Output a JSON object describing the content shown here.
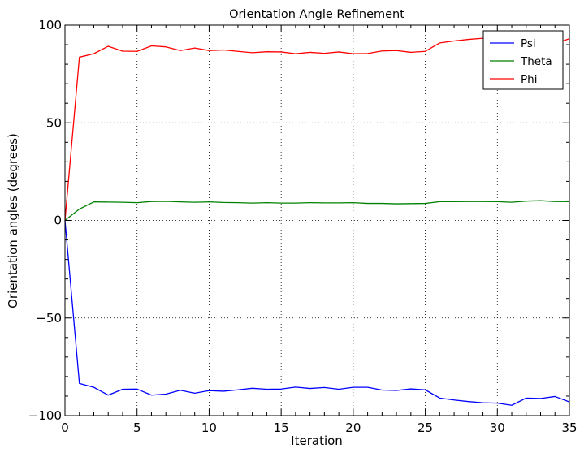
{
  "chart_data": {
    "type": "line",
    "title": "Orientation Angle Refinement",
    "xlabel": "Iteration",
    "ylabel": "Orientation angles (degrees)",
    "xlim": [
      0,
      35
    ],
    "ylim": [
      -100,
      100
    ],
    "xticks": [
      0,
      5,
      10,
      15,
      20,
      25,
      30,
      35
    ],
    "yticks": [
      -100,
      -50,
      0,
      50,
      100
    ],
    "xtick_labels": [
      "0",
      "5",
      "10",
      "15",
      "20",
      "25",
      "30",
      "35"
    ],
    "ytick_labels": [
      "−100",
      "−50",
      "0",
      "50",
      "100"
    ],
    "grid": true,
    "legend_position": "top-right",
    "x": [
      0,
      1,
      2,
      3,
      4,
      5,
      6,
      7,
      8,
      9,
      10,
      11,
      12,
      13,
      14,
      15,
      16,
      17,
      18,
      19,
      20,
      21,
      22,
      23,
      24,
      25,
      26,
      27,
      28,
      29,
      30,
      31,
      32,
      33,
      34,
      35
    ],
    "series": [
      {
        "name": "Psi",
        "color": "#0000ff",
        "values": [
          0,
          -83.5,
          -85.5,
          -89.5,
          -86.5,
          -86.4,
          -89.5,
          -89,
          -87,
          -88.5,
          -87.2,
          -87.5,
          -86.8,
          -86,
          -86.5,
          -86.4,
          -85.4,
          -86.1,
          -85.6,
          -86.5,
          -85.5,
          -85.5,
          -86.9,
          -87.1,
          -86.3,
          -86.8,
          -91,
          -92,
          -92.8,
          -93.4,
          -93.6,
          -94.7,
          -91,
          -91.2,
          -90.2,
          -93
        ]
      },
      {
        "name": "Theta",
        "color": "#008000",
        "values": [
          0,
          5.8,
          9.5,
          9.4,
          9.3,
          9.1,
          9.7,
          9.8,
          9.5,
          9.3,
          9.5,
          9.2,
          9.1,
          8.9,
          9.1,
          8.9,
          8.9,
          9.1,
          9.0,
          9.0,
          9.1,
          8.7,
          8.7,
          8.5,
          8.6,
          8.7,
          9.6,
          9.6,
          9.7,
          9.7,
          9.6,
          9.3,
          9.9,
          10.1,
          9.7,
          9.6
        ]
      },
      {
        "name": "Phi",
        "color": "#ff0000",
        "values": [
          0,
          83.6,
          85.4,
          89.2,
          86.7,
          86.6,
          89.4,
          88.9,
          87.0,
          88.3,
          87.0,
          87.3,
          86.6,
          85.9,
          86.4,
          86.3,
          85.4,
          86.1,
          85.6,
          86.3,
          85.4,
          85.5,
          86.8,
          87.0,
          86.1,
          86.6,
          90.9,
          91.9,
          92.7,
          93.3,
          93.5,
          94.6,
          91.0,
          91.2,
          90.4,
          93.1
        ]
      }
    ]
  }
}
